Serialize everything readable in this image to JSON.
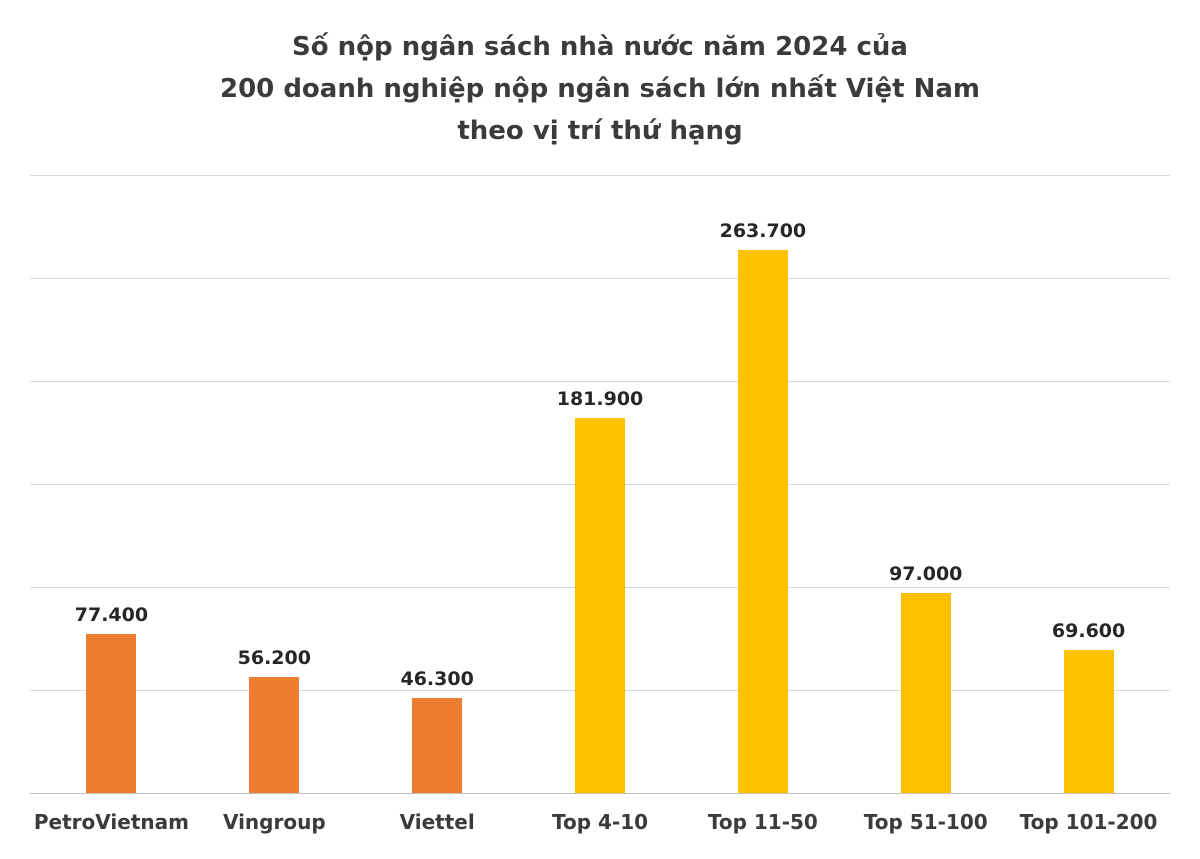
{
  "chart_data": {
    "type": "bar",
    "title_lines": [
      "Số nộp ngân sách nhà nước năm 2024 của",
      "200 doanh nghiệp nộp ngân sách lớn nhất Việt Nam",
      "theo vị trí thứ hạng"
    ],
    "categories": [
      "PetroVietnam",
      "Vingroup",
      "Viettel",
      "Top 4-10",
      "Top 11-50",
      "Top 51-100",
      "Top 101-200"
    ],
    "values": [
      77400,
      56200,
      46300,
      181900,
      263700,
      97000,
      69600
    ],
    "value_labels": [
      "77.400",
      "56.200",
      "46.300",
      "181.900",
      "263.700",
      "97.000",
      "69.600"
    ],
    "bar_colors": [
      "#ED7D31",
      "#ED7D31",
      "#ED7D31",
      "#FFC000",
      "#FFC000",
      "#FFC000",
      "#FFC000"
    ],
    "ylim": [
      0,
      300000
    ],
    "gridline_step": 50000,
    "grid": true,
    "legend": "none",
    "ylabel": "",
    "xlabel": "",
    "colors": {
      "orange_series": "#ED7D31",
      "yellow_series": "#FFC000",
      "title_text": "#3B3B3B",
      "value_label_text": "#262626",
      "gridline": "#D9D9D9",
      "axis_line": "#BFBFBF",
      "background": "#FFFFFF"
    }
  }
}
